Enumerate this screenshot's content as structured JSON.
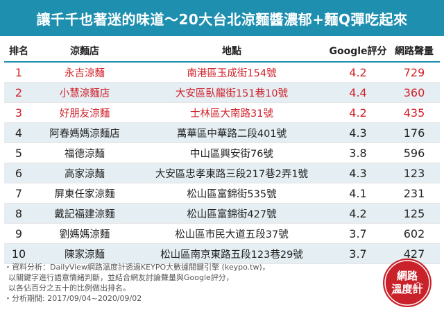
{
  "title": "讓千千也著迷的味道～20大台北涼麵醬濃郁+麵Q彈吃起來",
  "headers": {
    "rank": "排名",
    "shop": "涼麵店",
    "address": "地點",
    "score": "Google評分",
    "volume": "網路聲量"
  },
  "rows": [
    {
      "rank": "1",
      "shop": "永吉涼麵",
      "address": "南港區玉成街154號",
      "score": "4.2",
      "volume": "729"
    },
    {
      "rank": "2",
      "shop": "小慧涼麵店",
      "address": "大安區臥龍街151巷10號",
      "score": "4.4",
      "volume": "360"
    },
    {
      "rank": "3",
      "shop": "好朋友涼麵",
      "address": "士林區大南路31號",
      "score": "4.2",
      "volume": "435"
    },
    {
      "rank": "4",
      "shop": "阿春媽媽涼麵店",
      "address": "萬華區中華路二段401號",
      "score": "4.3",
      "volume": "176"
    },
    {
      "rank": "5",
      "shop": "福德涼麵",
      "address": "中山區興安街76號",
      "score": "3.8",
      "volume": "596"
    },
    {
      "rank": "6",
      "shop": "高家涼麵",
      "address": "大安區忠孝東路三段217巷2弄1號",
      "score": "4.3",
      "volume": "123"
    },
    {
      "rank": "7",
      "shop": "屏東任家涼麵",
      "address": "松山區富錦街535號",
      "score": "4.1",
      "volume": "231"
    },
    {
      "rank": "8",
      "shop": "戴記福建涼麵",
      "address": "松山區富錦街427號",
      "score": "4.2",
      "volume": "125"
    },
    {
      "rank": "9",
      "shop": "劉媽媽涼麵",
      "address": "松山區市民大道五段37號",
      "score": "3.7",
      "volume": "602"
    },
    {
      "rank": "10",
      "shop": "陳家涼麵",
      "address": "松山區南京東路五段123巷29號",
      "score": "3.7",
      "volume": "427"
    }
  ],
  "notes": {
    "line1": "・資料分析：DailyView網路溫度計透過KEYPO大數據關鍵引擎 (keypo.tw)，",
    "line2": "以關鍵字進行語意情緒判斷，並結合網友討論聲量與Google評分，",
    "line3": "以各佔百分之五十的比例做出排名。",
    "line4": "・分析期間: 2017/09/04~2020/09/02"
  },
  "logo": {
    "line1": "網路",
    "line2": "溫度計",
    "color": "#c9222a"
  },
  "colors": {
    "header_bg": "#1f8fb0",
    "highlight_text": "#d0212a",
    "stripe": "#e4eef3"
  }
}
